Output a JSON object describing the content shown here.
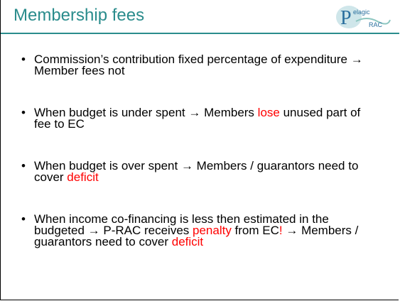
{
  "header": {
    "title": "Membership fees",
    "logo": {
      "letter": "P",
      "top": "elagic",
      "bottom": "RAC"
    }
  },
  "bullets": [
    {
      "runs": [
        {
          "text": "Commission’s contribution fixed percentage of expenditure → Member fees not",
          "color": "#000000"
        }
      ]
    },
    {
      "runs": [
        {
          "text": "When budget is under spent → Members ",
          "color": "#000000"
        },
        {
          "text": "lose",
          "color": "#ff0000"
        },
        {
          "text": " unused part of fee to EC",
          "color": "#000000"
        }
      ]
    },
    {
      "runs": [
        {
          "text": "When budget is over spent →  Members / guarantors need to cover ",
          "color": "#000000"
        },
        {
          "text": "deficit",
          "color": "#ff0000"
        }
      ]
    },
    {
      "runs": [
        {
          "text": "When income co-financing is less then estimated in the budgeted → P-RAC receives ",
          "color": "#000000"
        },
        {
          "text": "penalty",
          "color": "#ff0000"
        },
        {
          "text": " from EC",
          "color": "#000000"
        },
        {
          "text": "!",
          "color": "#ff0000"
        },
        {
          "text": " → Members / guarantors need to cover ",
          "color": "#000000"
        },
        {
          "text": "deficit",
          "color": "#ff0000"
        }
      ]
    }
  ]
}
